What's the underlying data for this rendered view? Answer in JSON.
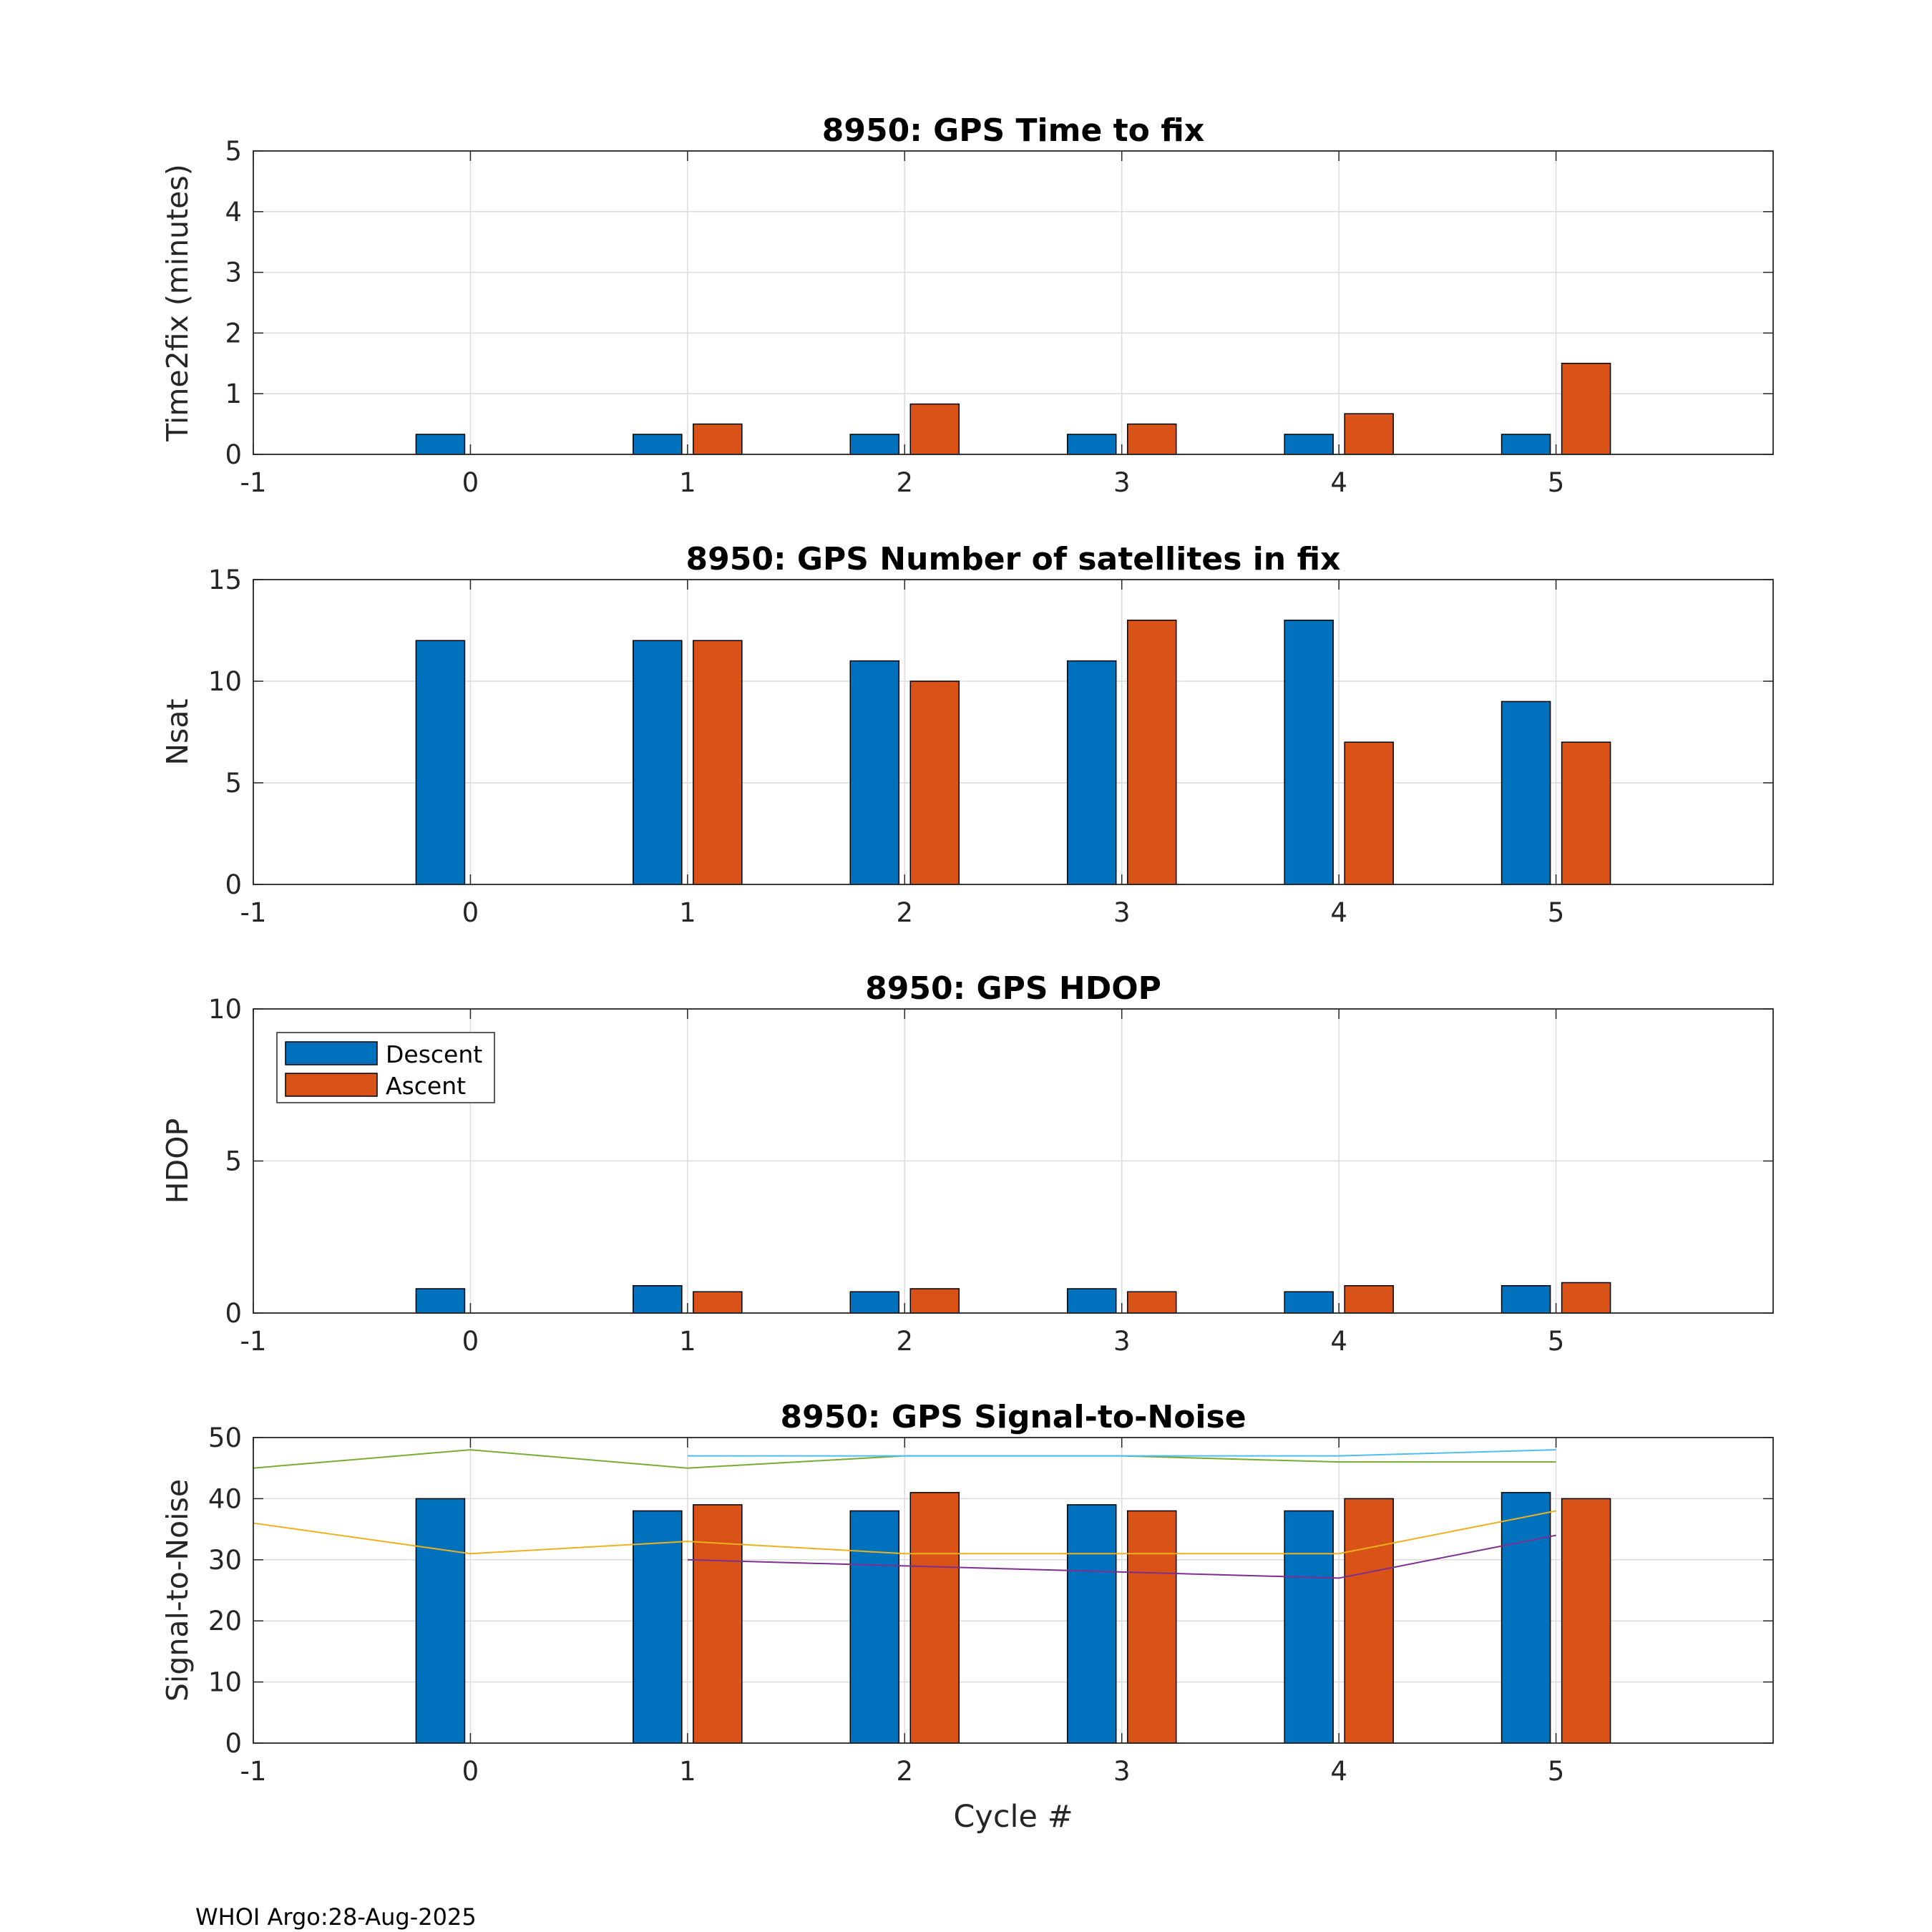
{
  "footer": "WHOI Argo:28-Aug-2025",
  "xlabel": "Cycle #",
  "legend": {
    "descent": "Descent",
    "ascent": "Ascent"
  },
  "colors": {
    "descent": "#0072BD",
    "ascent": "#D95319"
  },
  "chart_data": [
    {
      "type": "bar",
      "title": "8950: GPS Time to fix",
      "ylabel": "Time2fix (minutes)",
      "xlabel": "",
      "xlim": [
        -1,
        6
      ],
      "xticks": [
        "-1",
        "0",
        "1",
        "2",
        "3",
        "4",
        "5"
      ],
      "ylim": [
        0,
        5
      ],
      "yticks": [
        "0",
        "1",
        "2",
        "3",
        "4",
        "5"
      ],
      "grid": true,
      "categories": [
        0,
        1,
        2,
        3,
        4,
        5
      ],
      "series": [
        {
          "name": "Descent",
          "values": [
            0.33,
            0.33,
            0.33,
            0.33,
            0.33,
            0.33
          ]
        },
        {
          "name": "Ascent",
          "values": [
            null,
            0.5,
            0.83,
            0.5,
            0.67,
            1.5
          ]
        }
      ]
    },
    {
      "type": "bar",
      "title": "8950: GPS Number of satellites in fix",
      "ylabel": "Nsat",
      "xlabel": "",
      "xlim": [
        -1,
        6
      ],
      "xticks": [
        "-1",
        "0",
        "1",
        "2",
        "3",
        "4",
        "5"
      ],
      "ylim": [
        0,
        15
      ],
      "yticks": [
        "0",
        "5",
        "10",
        "15"
      ],
      "grid": true,
      "categories": [
        0,
        1,
        2,
        3,
        4,
        5
      ],
      "series": [
        {
          "name": "Descent",
          "values": [
            12,
            12,
            11,
            11,
            13,
            9
          ]
        },
        {
          "name": "Ascent",
          "values": [
            null,
            12,
            10,
            13,
            7,
            7
          ]
        }
      ]
    },
    {
      "type": "bar",
      "title": "8950: GPS HDOP",
      "ylabel": "HDOP",
      "xlabel": "",
      "xlim": [
        -1,
        6
      ],
      "xticks": [
        "-1",
        "0",
        "1",
        "2",
        "3",
        "4",
        "5"
      ],
      "ylim": [
        0,
        10
      ],
      "yticks": [
        "0",
        "5",
        "10"
      ],
      "grid": true,
      "legend_position": "top-left",
      "categories": [
        0,
        1,
        2,
        3,
        4,
        5
      ],
      "series": [
        {
          "name": "Descent",
          "values": [
            0.8,
            0.9,
            0.7,
            0.8,
            0.7,
            0.9
          ]
        },
        {
          "name": "Ascent",
          "values": [
            null,
            0.7,
            0.8,
            0.7,
            0.9,
            1.0
          ]
        }
      ]
    },
    {
      "type": "bar",
      "title": "8950: GPS Signal-to-Noise",
      "ylabel": "Signal-to-Noise",
      "xlabel": "Cycle #",
      "xlim": [
        -1,
        6
      ],
      "xticks": [
        "-1",
        "0",
        "1",
        "2",
        "3",
        "4",
        "5"
      ],
      "ylim": [
        0,
        50
      ],
      "yticks": [
        "0",
        "10",
        "20",
        "30",
        "40",
        "50"
      ],
      "grid": true,
      "categories": [
        0,
        1,
        2,
        3,
        4,
        5
      ],
      "series": [
        {
          "name": "Descent",
          "values": [
            40,
            38,
            38,
            39,
            38,
            41
          ]
        },
        {
          "name": "Ascent",
          "values": [
            null,
            39,
            41,
            38,
            40,
            40
          ]
        }
      ],
      "lines": [
        {
          "color": "#77AC30",
          "x": [
            -1,
            0,
            1,
            2,
            3,
            4,
            5
          ],
          "y": [
            45,
            48,
            45,
            47,
            47,
            46,
            46
          ]
        },
        {
          "color": "#4DBEEE",
          "x": [
            1,
            2,
            3,
            4,
            5
          ],
          "y": [
            47,
            47,
            47,
            47,
            48
          ]
        },
        {
          "color": "#EDB120",
          "x": [
            -1,
            0,
            1,
            2,
            3,
            4,
            5
          ],
          "y": [
            36,
            31,
            33,
            31,
            31,
            31,
            38
          ]
        },
        {
          "color": "#7E2F8E",
          "x": [
            1,
            2,
            3,
            4,
            5
          ],
          "y": [
            30,
            29,
            28,
            27,
            34
          ]
        }
      ]
    }
  ]
}
